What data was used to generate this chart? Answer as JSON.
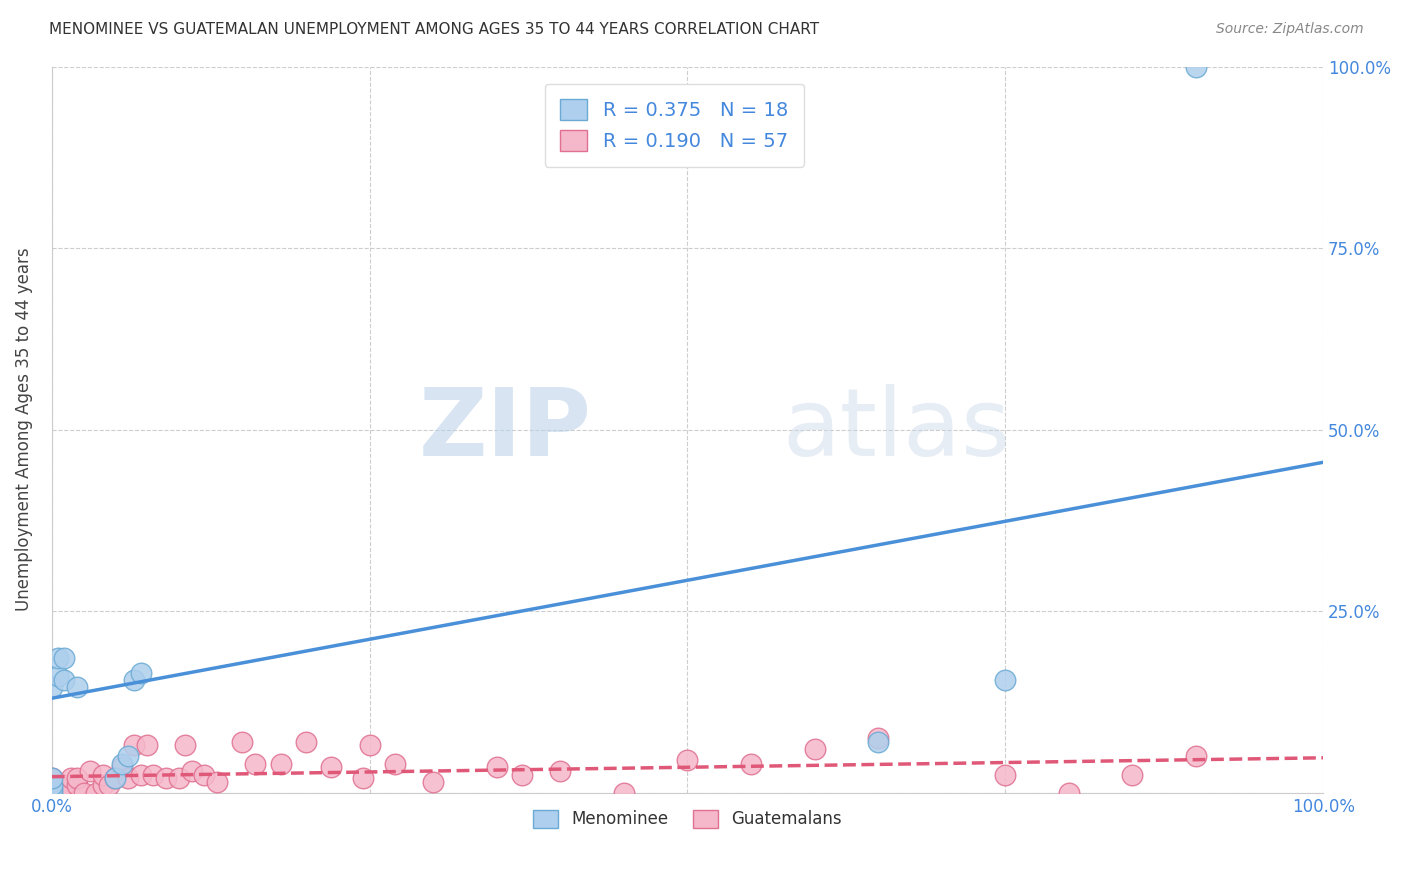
{
  "title": "MENOMINEE VS GUATEMALAN UNEMPLOYMENT AMONG AGES 35 TO 44 YEARS CORRELATION CHART",
  "source": "Source: ZipAtlas.com",
  "ylabel": "Unemployment Among Ages 35 to 44 years",
  "xlim": [
    0.0,
    1.0
  ],
  "ylim": [
    0.0,
    1.0
  ],
  "xticks": [
    0.0,
    0.25,
    0.5,
    0.75,
    1.0
  ],
  "yticks": [
    0.0,
    0.25,
    0.5,
    0.75,
    1.0
  ],
  "xticklabels": [
    "0.0%",
    "",
    "",
    "",
    "100.0%"
  ],
  "yticklabels_right": [
    "",
    "25.0%",
    "50.0%",
    "75.0%",
    "100.0%"
  ],
  "menominee_color": "#aecfed",
  "menominee_edge_color": "#6aaad4",
  "guatemalan_color": "#f5b8cb",
  "guatemalan_edge_color": "#e07090",
  "menominee_line_color": "#4a90d9",
  "guatemalan_line_color": "#e05878",
  "grid_color": "#c8c8c8",
  "background_color": "#ffffff",
  "watermark_zip": "ZIP",
  "watermark_atlas": "atlas",
  "R_menominee": 0.375,
  "N_menominee": 18,
  "R_guatemalan": 0.19,
  "N_guatemalan": 57,
  "menominee_x": [
    0.0,
    0.0,
    0.0,
    0.0,
    0.0,
    0.005,
    0.005,
    0.01,
    0.01,
    0.02,
    0.05,
    0.055,
    0.06,
    0.065,
    0.07,
    0.65,
    0.75,
    0.9
  ],
  "menominee_y": [
    0.0,
    0.005,
    0.01,
    0.02,
    0.145,
    0.16,
    0.185,
    0.155,
    0.185,
    0.145,
    0.02,
    0.04,
    0.05,
    0.155,
    0.165,
    0.07,
    0.155,
    1.0
  ],
  "guatemalan_x": [
    0.0,
    0.0,
    0.0,
    0.0,
    0.0,
    0.0,
    0.0,
    0.0,
    0.0,
    0.0,
    0.005,
    0.005,
    0.01,
    0.01,
    0.015,
    0.02,
    0.02,
    0.025,
    0.03,
    0.035,
    0.04,
    0.04,
    0.045,
    0.05,
    0.055,
    0.06,
    0.065,
    0.07,
    0.075,
    0.08,
    0.09,
    0.1,
    0.105,
    0.11,
    0.12,
    0.13,
    0.15,
    0.16,
    0.18,
    0.2,
    0.22,
    0.245,
    0.25,
    0.27,
    0.3,
    0.35,
    0.37,
    0.4,
    0.45,
    0.5,
    0.55,
    0.6,
    0.65,
    0.75,
    0.8,
    0.85,
    0.9
  ],
  "guatemalan_y": [
    0.0,
    0.0,
    0.0,
    0.0,
    0.0,
    0.0,
    0.005,
    0.01,
    0.01,
    0.02,
    0.0,
    0.01,
    0.0,
    0.01,
    0.02,
    0.01,
    0.02,
    0.0,
    0.03,
    0.0,
    0.01,
    0.025,
    0.01,
    0.02,
    0.035,
    0.02,
    0.065,
    0.025,
    0.065,
    0.025,
    0.02,
    0.02,
    0.065,
    0.03,
    0.025,
    0.015,
    0.07,
    0.04,
    0.04,
    0.07,
    0.035,
    0.02,
    0.065,
    0.04,
    0.015,
    0.035,
    0.025,
    0.03,
    0.0,
    0.045,
    0.04,
    0.06,
    0.075,
    0.025,
    0.0,
    0.025,
    0.05
  ],
  "men_line_x0": 0.0,
  "men_line_y0": 0.13,
  "men_line_x1": 1.0,
  "men_line_y1": 0.455,
  "guat_line_x0": 0.0,
  "guat_line_y0": 0.022,
  "guat_line_x1": 1.0,
  "guat_line_y1": 0.048
}
